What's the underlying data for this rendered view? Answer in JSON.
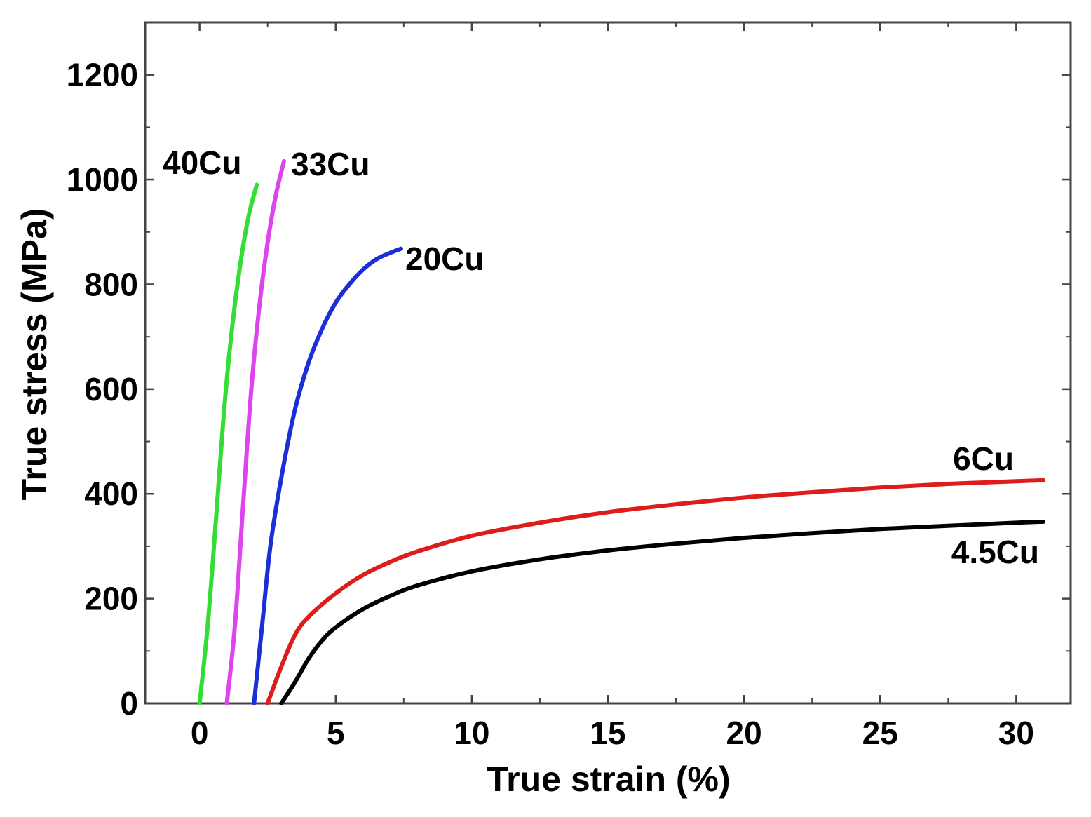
{
  "chart_data": {
    "type": "line",
    "title": "",
    "xlabel": "True strain (%)",
    "ylabel": "True stress (MPa)",
    "xlim": [
      -2,
      32
    ],
    "ylim": [
      0,
      1300
    ],
    "x_ticks": [
      0,
      5,
      10,
      15,
      20,
      25,
      30
    ],
    "x_tick_labels": [
      "0",
      "5",
      "10",
      "15",
      "20",
      "25",
      "30"
    ],
    "y_ticks": [
      0,
      200,
      400,
      600,
      800,
      1000,
      1200
    ],
    "y_tick_labels": [
      "0",
      "200",
      "400",
      "600",
      "800",
      "1000",
      "1200"
    ],
    "grid": false,
    "legend": "none (series labelled directly on curves)",
    "series": [
      {
        "name": "40Cu",
        "color": "#33dd33",
        "points": [
          [
            0.0,
            0
          ],
          [
            0.3,
            150
          ],
          [
            0.6,
            350
          ],
          [
            0.9,
            560
          ],
          [
            1.2,
            720
          ],
          [
            1.5,
            840
          ],
          [
            1.8,
            930
          ],
          [
            2.1,
            990
          ]
        ]
      },
      {
        "name": "33Cu",
        "color": "#dd44ee",
        "points": [
          [
            1.0,
            0
          ],
          [
            1.3,
            150
          ],
          [
            1.6,
            380
          ],
          [
            1.9,
            600
          ],
          [
            2.2,
            760
          ],
          [
            2.5,
            880
          ],
          [
            2.8,
            970
          ],
          [
            3.1,
            1035
          ]
        ]
      },
      {
        "name": "20Cu",
        "color": "#1a2fd6",
        "points": [
          [
            2.0,
            0
          ],
          [
            2.3,
            150
          ],
          [
            2.6,
            300
          ],
          [
            3.0,
            430
          ],
          [
            3.5,
            560
          ],
          [
            4.0,
            650
          ],
          [
            4.5,
            715
          ],
          [
            5.0,
            765
          ],
          [
            5.5,
            800
          ],
          [
            6.0,
            828
          ],
          [
            6.5,
            848
          ],
          [
            7.0,
            860
          ],
          [
            7.4,
            868
          ]
        ]
      },
      {
        "name": "6Cu",
        "color": "#dd1c1c",
        "points": [
          [
            2.5,
            0
          ],
          [
            3.0,
            70
          ],
          [
            3.5,
            130
          ],
          [
            4.0,
            165
          ],
          [
            5.0,
            210
          ],
          [
            6.0,
            245
          ],
          [
            7.0,
            270
          ],
          [
            8.0,
            290
          ],
          [
            10.0,
            320
          ],
          [
            12.5,
            345
          ],
          [
            15.0,
            365
          ],
          [
            17.5,
            380
          ],
          [
            20.0,
            393
          ],
          [
            22.5,
            403
          ],
          [
            25.0,
            412
          ],
          [
            27.5,
            419
          ],
          [
            30.0,
            424
          ],
          [
            31.0,
            426
          ]
        ]
      },
      {
        "name": "4.5Cu",
        "color": "#000000",
        "points": [
          [
            3.0,
            0
          ],
          [
            3.5,
            40
          ],
          [
            4.0,
            85
          ],
          [
            4.5,
            120
          ],
          [
            5.0,
            145
          ],
          [
            6.0,
            180
          ],
          [
            7.0,
            205
          ],
          [
            8.0,
            225
          ],
          [
            10.0,
            252
          ],
          [
            12.5,
            275
          ],
          [
            15.0,
            292
          ],
          [
            17.5,
            305
          ],
          [
            20.0,
            316
          ],
          [
            22.5,
            325
          ],
          [
            25.0,
            333
          ],
          [
            27.5,
            339
          ],
          [
            30.0,
            345
          ],
          [
            31.0,
            347
          ]
        ]
      }
    ],
    "annotations": [
      "40Cu",
      "33Cu",
      "20Cu",
      "6Cu",
      "4.5Cu"
    ]
  }
}
